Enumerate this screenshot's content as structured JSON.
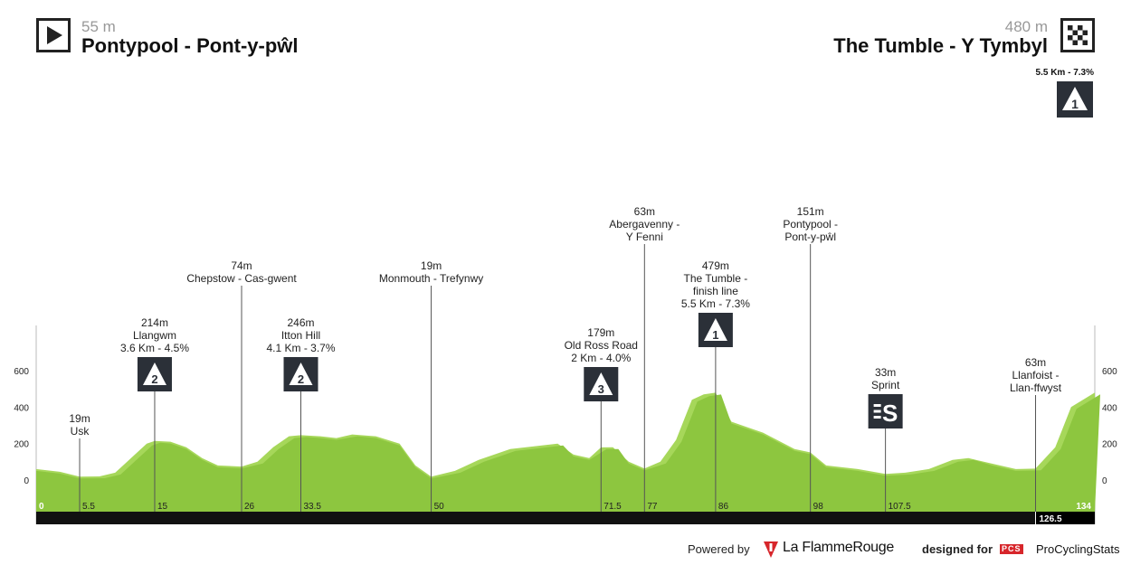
{
  "header": {
    "start": {
      "altitude": "55 m",
      "name": "Pontypool - Pont-y-pŵl",
      "icon": "play-arrow-icon"
    },
    "finish": {
      "altitude": "480 m",
      "name": "The Tumble - Y Tymbyl",
      "icon": "checkered-flag-icon",
      "climb_info": "5.5 Km - 7.3%",
      "climb_category": "1"
    }
  },
  "footer": {
    "powered_by": "Powered by",
    "brand": "La FlammeRouge",
    "designed_for": "designed for",
    "site_badge": "PCS",
    "site": "ProCyclingStats"
  },
  "colors": {
    "profile_dark": "#8dc63f",
    "profile_light": "#a6d75a",
    "badge": "#2b3038",
    "bar": "#111111"
  },
  "chart_data": {
    "type": "area",
    "title": "Pontypool - Pont-y-pŵl → The Tumble - Y Tymbyl",
    "xlabel": "km",
    "ylabel": "m",
    "xlim": [
      0,
      134
    ],
    "ylim": [
      -100,
      750
    ],
    "y_ticks": [
      "0",
      "200",
      "400",
      "600"
    ],
    "x_ticks": [
      "0",
      "5.5",
      "15",
      "26",
      "33.5",
      "50",
      "71.5",
      "77",
      "86",
      "98",
      "107.5",
      "134"
    ],
    "x_tick_values": [
      0,
      5.5,
      15,
      26,
      33.5,
      50,
      71.5,
      77,
      86,
      98,
      107.5,
      134
    ],
    "last_km_label": "126.5",
    "last_km": 126.5,
    "profile": [
      [
        0,
        60
      ],
      [
        3,
        45
      ],
      [
        5.5,
        19
      ],
      [
        8,
        20
      ],
      [
        10,
        40
      ],
      [
        12,
        120
      ],
      [
        14,
        200
      ],
      [
        15,
        214
      ],
      [
        17,
        210
      ],
      [
        19,
        180
      ],
      [
        21,
        120
      ],
      [
        23,
        80
      ],
      [
        26,
        74
      ],
      [
        28,
        100
      ],
      [
        30,
        180
      ],
      [
        32,
        240
      ],
      [
        33.5,
        246
      ],
      [
        36,
        240
      ],
      [
        38,
        230
      ],
      [
        40,
        250
      ],
      [
        43,
        240
      ],
      [
        46,
        200
      ],
      [
        48,
        80
      ],
      [
        50,
        19
      ],
      [
        53,
        50
      ],
      [
        56,
        110
      ],
      [
        60,
        170
      ],
      [
        64,
        190
      ],
      [
        66,
        200
      ],
      [
        68,
        140
      ],
      [
        70,
        120
      ],
      [
        71.5,
        179
      ],
      [
        73,
        180
      ],
      [
        75,
        100
      ],
      [
        77,
        63
      ],
      [
        79,
        100
      ],
      [
        81,
        220
      ],
      [
        83,
        440
      ],
      [
        84.5,
        470
      ],
      [
        86,
        479
      ],
      [
        88,
        320
      ],
      [
        92,
        260
      ],
      [
        96,
        170
      ],
      [
        98,
        151
      ],
      [
        100,
        80
      ],
      [
        104,
        60
      ],
      [
        107.5,
        33
      ],
      [
        110,
        40
      ],
      [
        113,
        60
      ],
      [
        116,
        110
      ],
      [
        118,
        120
      ],
      [
        121,
        90
      ],
      [
        124,
        60
      ],
      [
        126.5,
        63
      ],
      [
        129,
        180
      ],
      [
        131,
        400
      ],
      [
        134,
        480
      ]
    ],
    "markers": [
      {
        "km": 5.5,
        "alt": 19,
        "lines": [
          "19m",
          "Usk"
        ],
        "badge": null
      },
      {
        "km": 15,
        "alt": 214,
        "lines": [
          "214m",
          "Llangwm",
          "3.6 Km - 4.5%"
        ],
        "badge": "2"
      },
      {
        "km": 26,
        "alt": 74,
        "lines": [
          "74m",
          "Chepstow - Cas-gwent"
        ],
        "badge": null
      },
      {
        "km": 33.5,
        "alt": 246,
        "lines": [
          "246m",
          "Itton Hill",
          "4.1 Km - 3.7%"
        ],
        "badge": "2"
      },
      {
        "km": 50,
        "alt": 19,
        "lines": [
          "19m",
          "Monmouth - Trefynwy"
        ],
        "badge": null
      },
      {
        "km": 71.5,
        "alt": 179,
        "lines": [
          "179m",
          "Old Ross Road",
          "2 Km - 4.0%"
        ],
        "badge": "3"
      },
      {
        "km": 77,
        "alt": 63,
        "lines": [
          "63m",
          "Abergavenny -",
          "Y Fenni"
        ],
        "badge": null
      },
      {
        "km": 86,
        "alt": 479,
        "lines": [
          "479m",
          "The Tumble -",
          "finish line",
          "5.5 Km - 7.3%"
        ],
        "badge": "1"
      },
      {
        "km": 98,
        "alt": 151,
        "lines": [
          "151m",
          "Pontypool -",
          "Pont-y-pŵl"
        ],
        "badge": null
      },
      {
        "km": 107.5,
        "alt": 33,
        "lines": [
          "33m",
          "Sprint"
        ],
        "badge": "S"
      },
      {
        "km": 126.5,
        "alt": 63,
        "lines": [
          "63m",
          "Llanfoist -",
          "Llan-ffwyst"
        ],
        "badge": null
      }
    ]
  }
}
